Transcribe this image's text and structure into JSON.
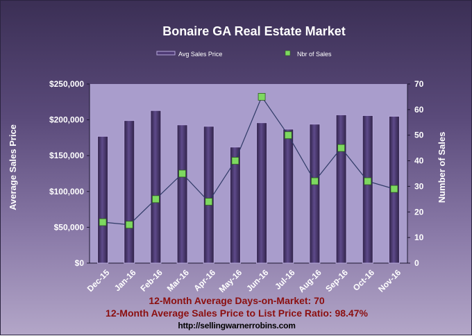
{
  "chart_data": {
    "type": "bar",
    "title": "Bonaire GA Real Estate Market",
    "categories": [
      "Dec-15",
      "Jan-16",
      "Feb-16",
      "Mar-16",
      "Apr-16",
      "May-16",
      "Jun-16",
      "Jul-16",
      "Aug-16",
      "Sep-16",
      "Oct-16",
      "Nov-16"
    ],
    "series": [
      {
        "name": "Avg Sales Price",
        "type": "bar",
        "axis": "left",
        "values": [
          177000,
          199000,
          213000,
          193000,
          191000,
          162000,
          196000,
          187000,
          194000,
          207000,
          206000,
          205000
        ]
      },
      {
        "name": "Nbr of Sales",
        "type": "line",
        "axis": "right",
        "values": [
          16,
          15,
          25,
          35,
          24,
          40,
          65,
          50,
          32,
          45,
          32,
          29
        ]
      }
    ],
    "ylabel": "Average Sales Price",
    "y2label": "Number of Sales",
    "ylim": [
      0,
      250000
    ],
    "y2lim": [
      0,
      70
    ],
    "yticks": [
      "$0",
      "$50,000",
      "$100,000",
      "$150,000",
      "$200,000",
      "$250,000"
    ],
    "y2ticks": [
      "0",
      "10",
      "20",
      "30",
      "40",
      "50",
      "60",
      "70"
    ],
    "legend_position": "top",
    "grid": false,
    "colors": {
      "plot_bg": "#a99dcc",
      "bar_fill": "#4e3a75",
      "bar_edge": "#b7a8dc",
      "line": "#2f3a66",
      "marker": "#7dd860"
    }
  },
  "footer": {
    "days_on_market": "12-Month Average Days-on-Market: 70",
    "price_ratio": "12-Month Average Sales Price to List Price Ratio: 98.47%",
    "url": "http://sellingwarnerrobins.com"
  }
}
